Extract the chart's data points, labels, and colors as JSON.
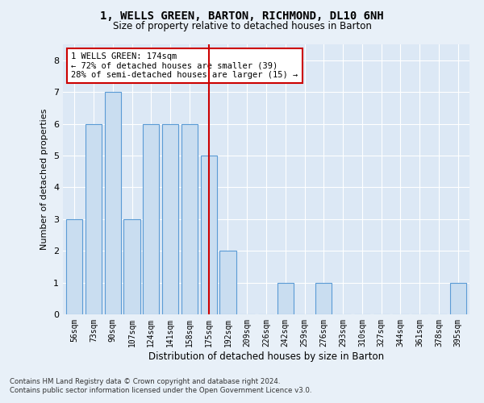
{
  "title": "1, WELLS GREEN, BARTON, RICHMOND, DL10 6NH",
  "subtitle": "Size of property relative to detached houses in Barton",
  "xlabel": "Distribution of detached houses by size in Barton",
  "ylabel": "Number of detached properties",
  "bar_labels": [
    "56sqm",
    "73sqm",
    "90sqm",
    "107sqm",
    "124sqm",
    "141sqm",
    "158sqm",
    "175sqm",
    "192sqm",
    "209sqm",
    "226sqm",
    "242sqm",
    "259sqm",
    "276sqm",
    "293sqm",
    "310sqm",
    "327sqm",
    "344sqm",
    "361sqm",
    "378sqm",
    "395sqm"
  ],
  "bar_values": [
    3,
    6,
    7,
    3,
    6,
    6,
    6,
    5,
    2,
    0,
    0,
    1,
    0,
    1,
    0,
    0,
    0,
    0,
    0,
    0,
    1
  ],
  "bar_color": "#c9ddf0",
  "bar_edge_color": "#5b9bd5",
  "highlight_index": 7,
  "highlight_line_color": "#cc0000",
  "annotation_title": "1 WELLS GREEN: 174sqm",
  "annotation_line1": "← 72% of detached houses are smaller (39)",
  "annotation_line2": "28% of semi-detached houses are larger (15) →",
  "annotation_box_color": "#ffffff",
  "annotation_box_edge": "#cc0000",
  "ylim": [
    0,
    8.5
  ],
  "yticks": [
    0,
    1,
    2,
    3,
    4,
    5,
    6,
    7,
    8
  ],
  "footer1": "Contains HM Land Registry data © Crown copyright and database right 2024.",
  "footer2": "Contains public sector information licensed under the Open Government Licence v3.0.",
  "bg_color": "#e8f0f8",
  "plot_bg_color": "#dce8f5"
}
